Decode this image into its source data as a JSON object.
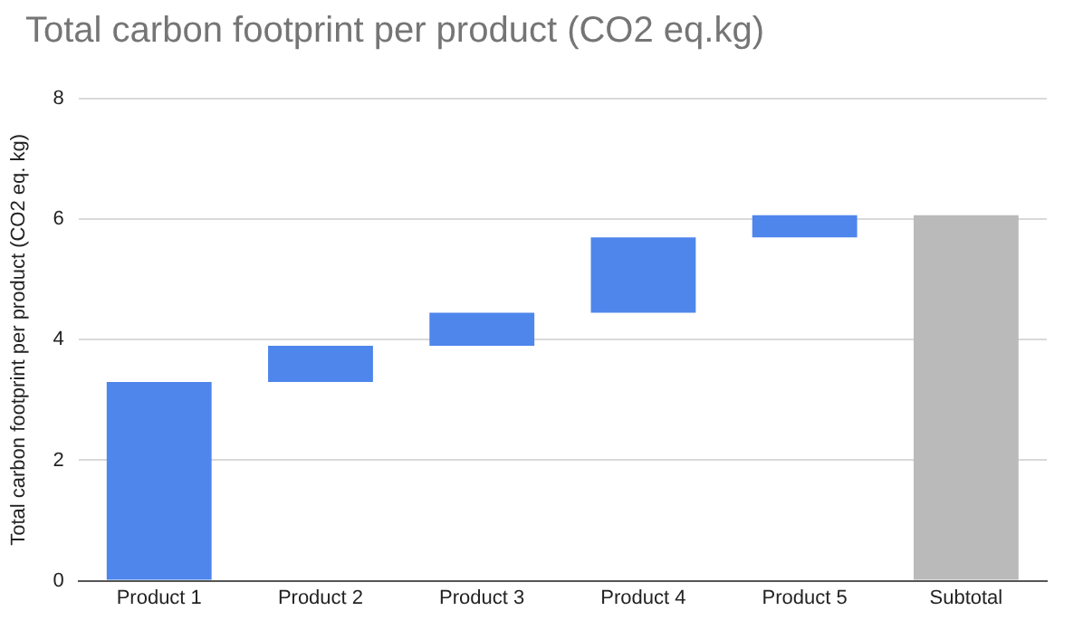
{
  "chart_data": {
    "type": "bar",
    "title": "Total carbon footprint per product (CO2 eq.kg)",
    "ylabel": "Total carbon footprint per product (CO2 eq. kg)",
    "categories": [
      "Product 1",
      "Product 2",
      "Product 3",
      "Product 4",
      "Product 5",
      "Subtotal"
    ],
    "values": [
      3.3,
      0.6,
      0.55,
      1.25,
      0.37,
      6.07
    ],
    "base": [
      0,
      3.3,
      3.9,
      4.45,
      5.7,
      0
    ],
    "colors": [
      "#4f86ec",
      "#4f86ec",
      "#4f86ec",
      "#4f86ec",
      "#4f86ec",
      "#bababa"
    ],
    "ylim": [
      0,
      8
    ],
    "yticks": [
      0,
      2,
      4,
      6,
      8
    ],
    "grid": "y",
    "legend": false
  }
}
